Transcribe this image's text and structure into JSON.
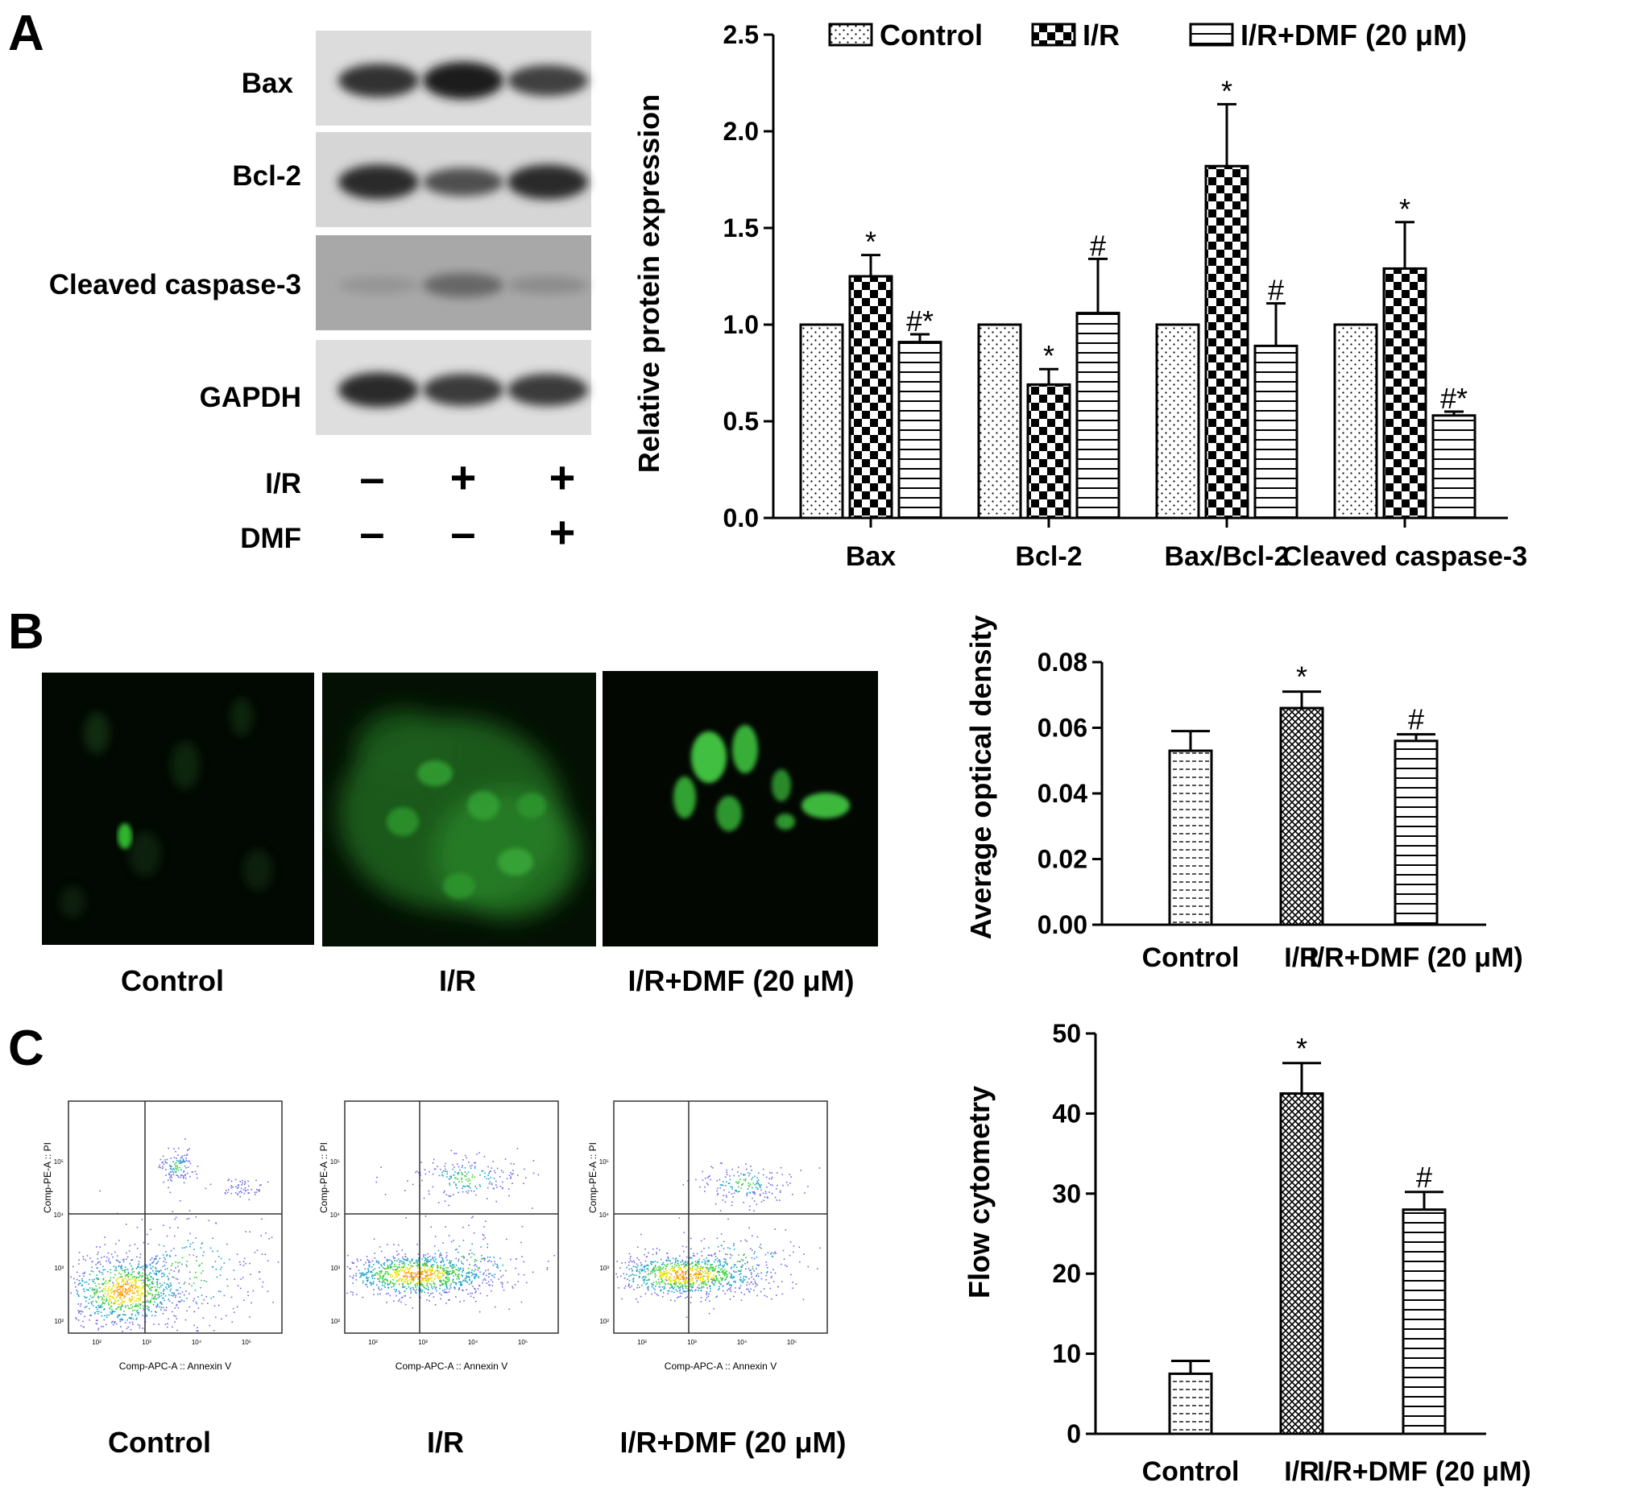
{
  "panels": {
    "A": {
      "letter": "A",
      "blot": {
        "rows": [
          "Bax",
          "Bcl-2",
          "Cleaved caspase-3",
          "GAPDH"
        ],
        "treatments": [
          {
            "name": "I/R",
            "signs": [
              "-",
              "+",
              "+"
            ]
          },
          {
            "name": "DMF",
            "signs": [
              "-",
              "-",
              "+"
            ]
          }
        ],
        "band_intensity": {
          "Bax": [
            0.8,
            0.95,
            0.7
          ],
          "Bcl-2": [
            0.85,
            0.6,
            0.85
          ],
          "Cleaved caspase-3": [
            0.15,
            0.45,
            0.2
          ],
          "GAPDH": [
            0.85,
            0.75,
            0.75
          ]
        }
      }
    },
    "B": {
      "letter": "B",
      "image_labels": [
        "Control",
        "I/R",
        "I/R+DMF (20 μM)"
      ]
    },
    "C": {
      "letter": "C",
      "image_labels": [
        "Control",
        "I/R",
        "I/R+DMF (20 μM)"
      ],
      "cytometry": {
        "x_axis_label": "Comp-APC-A :: Annexin V",
        "y_axis_label": "Comp-PE-A :: PI",
        "x_ticks": [
          "10²",
          "10³",
          "10⁴",
          "10⁵"
        ],
        "y_ticks": [
          "10²",
          "10³",
          "10⁴",
          "10⁵"
        ]
      }
    }
  },
  "chart_data": [
    {
      "id": "A",
      "type": "bar",
      "categories": [
        "Bax",
        "Bcl-2",
        "Bax/Bcl-2",
        "Cleaved caspase-3"
      ],
      "series": [
        {
          "name": "Control",
          "pattern": "dots",
          "values": [
            1.0,
            1.0,
            1.0,
            1.0
          ],
          "errors": [
            0,
            0,
            0,
            0
          ],
          "marks": [
            "",
            "",
            "",
            ""
          ]
        },
        {
          "name": "I/R",
          "pattern": "checker",
          "values": [
            1.25,
            0.69,
            1.82,
            1.29
          ],
          "errors": [
            0.11,
            0.08,
            0.32,
            0.24
          ],
          "marks": [
            "*",
            "*",
            "*",
            "*"
          ]
        },
        {
          "name": "I/R+DMF (20 μM)",
          "pattern": "hlines",
          "values": [
            0.91,
            1.06,
            0.89,
            0.53
          ],
          "errors": [
            0.04,
            0.28,
            0.22,
            0.02
          ],
          "marks": [
            "#*",
            "#",
            "#",
            "#*"
          ]
        }
      ],
      "ylabel": "Relative protein expression",
      "ylim": [
        0,
        2.5
      ],
      "yticks": [
        "0.0",
        "0.5",
        "1.0",
        "1.5",
        "2.0",
        "2.5"
      ],
      "legend_placement": "top",
      "grid": false
    },
    {
      "id": "B",
      "type": "bar",
      "categories": [
        "Control",
        "I/R",
        "I/R+DMF (20 μM)"
      ],
      "patterns": [
        "vdash",
        "crosshatch",
        "hlines"
      ],
      "values": [
        0.053,
        0.066,
        0.056
      ],
      "errors": [
        0.006,
        0.005,
        0.002
      ],
      "marks": [
        "",
        "*",
        "#"
      ],
      "ylabel": "Average optical density",
      "ylim": [
        0,
        0.08
      ],
      "yticks": [
        "0.00",
        "0.02",
        "0.04",
        "0.06",
        "0.08"
      ],
      "grid": false
    },
    {
      "id": "C",
      "type": "bar",
      "categories": [
        "Control",
        "I/R",
        "I/R+DMF (20 μM)"
      ],
      "patterns": [
        "vdash",
        "crosshatch",
        "hlines"
      ],
      "values": [
        7.5,
        42.5,
        28.0
      ],
      "errors": [
        1.6,
        3.8,
        2.2
      ],
      "marks": [
        "",
        "*",
        "#"
      ],
      "ylabel": "Flow cytometry",
      "ylim": [
        0,
        50
      ],
      "yticks": [
        "0",
        "10",
        "20",
        "30",
        "40",
        "50"
      ],
      "grid": false
    }
  ]
}
